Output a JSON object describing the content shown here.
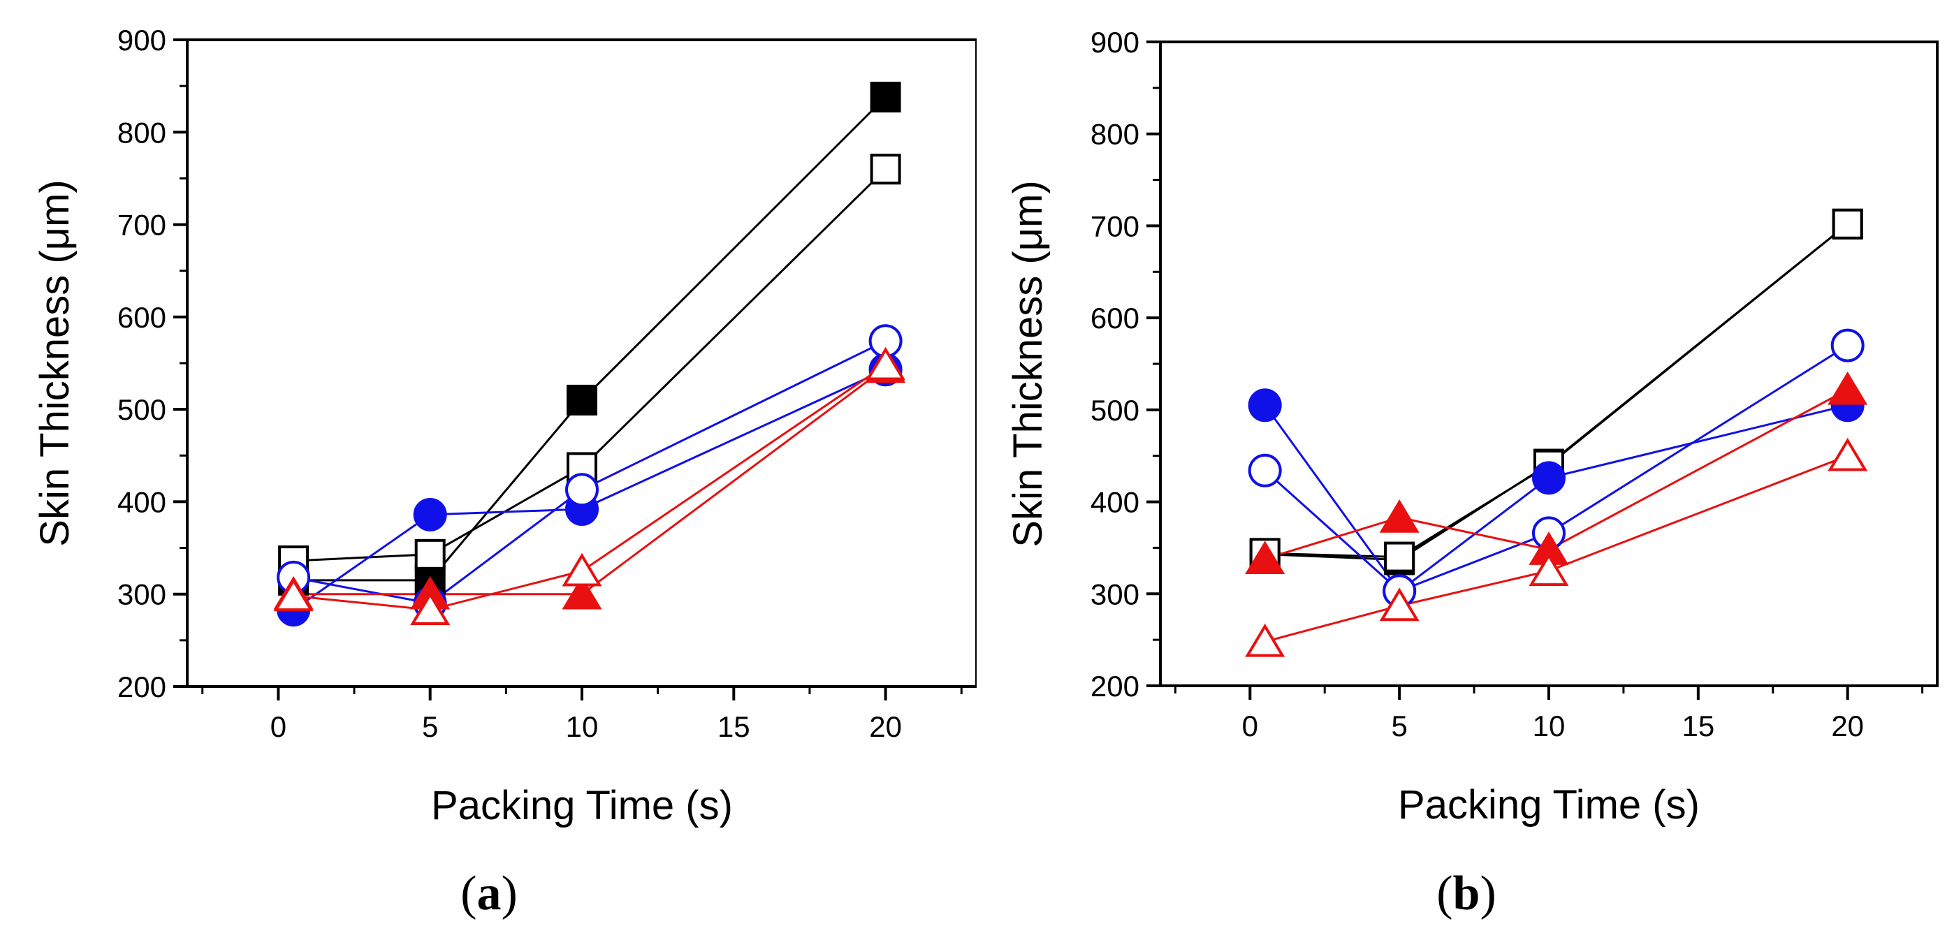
{
  "colors": {
    "black": "#000000",
    "blue": "#1010e8",
    "red": "#e81010"
  },
  "chart_data": [
    {
      "type": "line",
      "panel_label": "a",
      "xlabel": "Packing Time (s)",
      "ylabel": "Skin Thickness (μm)",
      "xlim": [
        -3,
        23
      ],
      "ylim": [
        200,
        900
      ],
      "xticks": [
        0,
        5,
        10,
        15,
        20
      ],
      "yticks": [
        200,
        300,
        400,
        500,
        600,
        700,
        800,
        900
      ],
      "series": [
        {
          "marker": "square",
          "filled": true,
          "color": "#000000",
          "x": [
            0.5,
            5,
            10,
            20
          ],
          "y": [
            315,
            315,
            510,
            838
          ]
        },
        {
          "marker": "square",
          "filled": false,
          "color": "#000000",
          "x": [
            0.5,
            5,
            10,
            20
          ],
          "y": [
            336,
            343,
            437,
            760
          ]
        },
        {
          "marker": "circle",
          "filled": true,
          "color": "#1010e8",
          "x": [
            0.5,
            5,
            10,
            20
          ],
          "y": [
            283,
            386,
            392,
            543
          ]
        },
        {
          "marker": "circle",
          "filled": false,
          "color": "#1010e8",
          "x": [
            0.5,
            5,
            10,
            20
          ],
          "y": [
            318,
            290,
            413,
            574
          ]
        },
        {
          "marker": "triangle",
          "filled": true,
          "color": "#e81010",
          "x": [
            0.5,
            5,
            10,
            20
          ],
          "y": [
            300,
            300,
            300,
            545
          ]
        },
        {
          "marker": "triangle",
          "filled": false,
          "color": "#e81010",
          "x": [
            0.5,
            5,
            10,
            20
          ],
          "y": [
            298,
            283,
            325,
            548
          ]
        }
      ]
    },
    {
      "type": "line",
      "panel_label": "b",
      "xlabel": "Packing Time (s)",
      "ylabel": "Skin Thickness (μm)",
      "xlim": [
        -3,
        23
      ],
      "ylim": [
        200,
        900
      ],
      "xticks": [
        0,
        5,
        10,
        15,
        20
      ],
      "yticks": [
        200,
        300,
        400,
        500,
        600,
        700,
        800,
        900
      ],
      "series": [
        {
          "marker": "square",
          "filled": true,
          "color": "#000000",
          "x": [
            0.5,
            5,
            10,
            20
          ],
          "y": [
            343,
            337,
            441,
            702
          ]
        },
        {
          "marker": "square",
          "filled": false,
          "color": "#000000",
          "x": [
            0.5,
            5,
            10,
            20
          ],
          "y": [
            344,
            340,
            440,
            702
          ]
        },
        {
          "marker": "circle",
          "filled": true,
          "color": "#1010e8",
          "x": [
            0.5,
            5,
            10,
            20
          ],
          "y": [
            505,
            303,
            426,
            505
          ]
        },
        {
          "marker": "circle",
          "filled": false,
          "color": "#1010e8",
          "x": [
            0.5,
            5,
            10,
            20
          ],
          "y": [
            434,
            303,
            366,
            570
          ]
        },
        {
          "marker": "triangle",
          "filled": true,
          "color": "#e81010",
          "x": [
            0.5,
            5,
            10,
            20
          ],
          "y": [
            338,
            383,
            348,
            522
          ]
        },
        {
          "marker": "triangle",
          "filled": false,
          "color": "#e81010",
          "x": [
            0.5,
            5,
            10,
            20
          ],
          "y": [
            248,
            287,
            325,
            450
          ]
        }
      ]
    }
  ]
}
